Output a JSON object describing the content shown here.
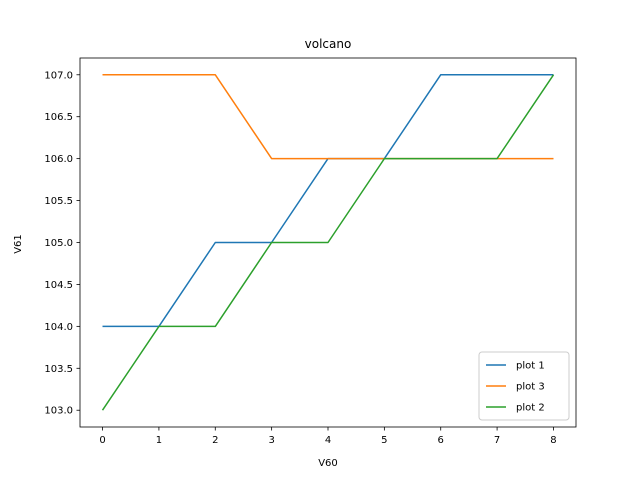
{
  "chart_data": {
    "type": "line",
    "title": "volcano",
    "xlabel": "V60",
    "ylabel": "V61",
    "xlim": [
      -0.4,
      8.4
    ],
    "ylim": [
      102.8,
      107.2
    ],
    "x_ticks": [
      0,
      1,
      2,
      3,
      4,
      5,
      6,
      7,
      8
    ],
    "y_ticks": [
      103.0,
      103.5,
      104.0,
      104.5,
      105.0,
      105.5,
      106.0,
      106.5,
      107.0
    ],
    "x": [
      0,
      1,
      2,
      3,
      4,
      5,
      6,
      7,
      8
    ],
    "series": [
      {
        "name": "plot 1",
        "color": "#1f77b4",
        "values": [
          104,
          104,
          105,
          105,
          106,
          106,
          107,
          107,
          107
        ]
      },
      {
        "name": "plot 3",
        "color": "#ff7f0e",
        "values": [
          107,
          107,
          107,
          106,
          106,
          106,
          106,
          106,
          106
        ]
      },
      {
        "name": "plot 2",
        "color": "#2ca02c",
        "values": [
          103,
          104,
          104,
          105,
          105,
          106,
          106,
          106,
          107
        ]
      }
    ],
    "grid": false,
    "legend_position": "lower-right"
  }
}
